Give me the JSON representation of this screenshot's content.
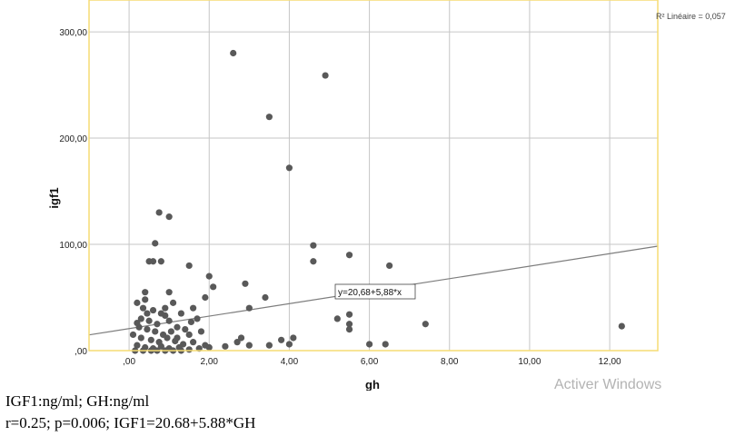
{
  "chart_data": {
    "type": "scatter",
    "xlabel": "gh",
    "ylabel": "igf1",
    "xlim": [
      -1.0,
      13.2
    ],
    "ylim": [
      0,
      330
    ],
    "x_ticks": [
      0,
      2,
      4,
      6,
      8,
      10,
      12
    ],
    "x_tick_labels": [
      ",00",
      "2,00",
      "4,00",
      "6,00",
      "8,00",
      "10,00",
      "12,00"
    ],
    "y_ticks": [
      0,
      100,
      200,
      300
    ],
    "y_tick_labels": [
      ",00",
      "100,00",
      "200,00",
      "300,00"
    ],
    "grid": true,
    "r2_label": "R² Linéaire = 0,057",
    "fit_line": {
      "intercept": 20.68,
      "slope": 5.88,
      "label": "y=20,68+5,88*x"
    },
    "points": [
      [
        2.6,
        280
      ],
      [
        4.9,
        259
      ],
      [
        3.5,
        220
      ],
      [
        4.0,
        172
      ],
      [
        0.75,
        130
      ],
      [
        1.0,
        126
      ],
      [
        0.65,
        101
      ],
      [
        4.6,
        99
      ],
      [
        5.5,
        90
      ],
      [
        4.6,
        84
      ],
      [
        6.5,
        80
      ],
      [
        1.5,
        80
      ],
      [
        0.5,
        84
      ],
      [
        0.6,
        84
      ],
      [
        0.8,
        84
      ],
      [
        2.0,
        70
      ],
      [
        2.1,
        60
      ],
      [
        2.9,
        63
      ],
      [
        1.9,
        50
      ],
      [
        3.4,
        50
      ],
      [
        3.0,
        40
      ],
      [
        5.5,
        34
      ],
      [
        5.2,
        30
      ],
      [
        5.5,
        25
      ],
      [
        5.5,
        20
      ],
      [
        7.4,
        25
      ],
      [
        12.3,
        23
      ],
      [
        2.8,
        12
      ],
      [
        3.8,
        10
      ],
      [
        4.1,
        12
      ],
      [
        2.7,
        8
      ],
      [
        3.0,
        5
      ],
      [
        3.5,
        5
      ],
      [
        4.0,
        6
      ],
      [
        6.0,
        6
      ],
      [
        6.4,
        6
      ],
      [
        2.4,
        4
      ],
      [
        0.2,
        45
      ],
      [
        0.4,
        48
      ],
      [
        0.35,
        40
      ],
      [
        0.6,
        38
      ],
      [
        0.8,
        35
      ],
      [
        0.9,
        40
      ],
      [
        1.1,
        45
      ],
      [
        1.3,
        35
      ],
      [
        1.6,
        40
      ],
      [
        1.7,
        30
      ],
      [
        0.3,
        30
      ],
      [
        0.5,
        28
      ],
      [
        0.7,
        25
      ],
      [
        1.0,
        28
      ],
      [
        1.2,
        22
      ],
      [
        1.4,
        20
      ],
      [
        0.25,
        22
      ],
      [
        0.45,
        20
      ],
      [
        0.65,
        18
      ],
      [
        0.85,
        15
      ],
      [
        1.05,
        18
      ],
      [
        1.5,
        15
      ],
      [
        1.8,
        18
      ],
      [
        0.3,
        12
      ],
      [
        0.55,
        10
      ],
      [
        0.75,
        8
      ],
      [
        0.95,
        12
      ],
      [
        1.15,
        9
      ],
      [
        1.35,
        6
      ],
      [
        1.6,
        8
      ],
      [
        1.9,
        5
      ],
      [
        0.2,
        5
      ],
      [
        0.4,
        3
      ],
      [
        0.6,
        2
      ],
      [
        0.8,
        4
      ],
      [
        1.0,
        2
      ],
      [
        1.25,
        3
      ],
      [
        1.5,
        1
      ],
      [
        1.75,
        2
      ],
      [
        2.0,
        3
      ],
      [
        0.15,
        0
      ],
      [
        0.35,
        0
      ],
      [
        0.55,
        0
      ],
      [
        0.7,
        0
      ],
      [
        0.9,
        0
      ],
      [
        1.1,
        0
      ],
      [
        1.3,
        0
      ],
      [
        0.45,
        35
      ],
      [
        1.55,
        27
      ],
      [
        0.9,
        33
      ],
      [
        1.2,
        12
      ],
      [
        0.1,
        15
      ],
      [
        0.2,
        26
      ],
      [
        1.0,
        55
      ],
      [
        0.4,
        55
      ]
    ]
  },
  "caption": {
    "units": "IGF1:ng/ml; GH:ng/ml",
    "stats": "r=0.25; p=0.006; IGF1=20.68+5.88*GH"
  },
  "watermark": "Activer Windows",
  "colors": {
    "point": "#595959",
    "grid": "#c6c6c6",
    "plot_border": "#f5dc73",
    "fit_line": "#7d7d7d",
    "background": "#ffffff"
  }
}
